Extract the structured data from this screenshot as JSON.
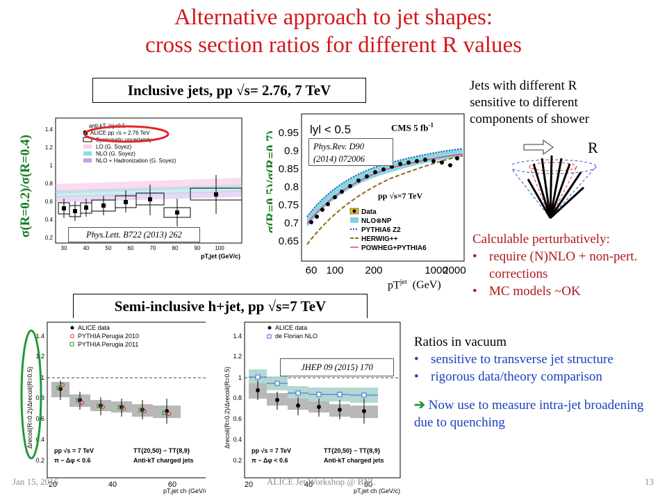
{
  "slide": {
    "title_line1": "Alternative approach to jet shapes:",
    "title_line2": "cross section ratios for different R values",
    "label_inclusive": "Inclusive jets, pp √s= 2.76, 7 TeV",
    "label_semi": "Semi-inclusive h+jet, pp √s=7 TeV",
    "footer_date": "Jan 15, 2016",
    "footer_center": "ALICE Jet Workshop @ BNL",
    "footer_page": "13",
    "title_color": "#d0191c"
  },
  "right_panel": {
    "jets_lines": [
      "Jets with different R",
      "sensitive to different",
      "components of shower"
    ],
    "R_label": "R",
    "calc_heading": "Calculable perturbatively:",
    "calc_bullets": [
      "require (N)NLO + non-pert. corrections",
      "MC models ~OK"
    ],
    "vacuum_heading": "Ratios in vacuum",
    "vacuum_bullets": [
      "sensitive to transverse jet structure",
      "rigorous data/theory comparison"
    ],
    "arrow_text": "Now use to measure intra-jet broadening due to quenching"
  },
  "plot1": {
    "ylabel": "σ(R=0.2)/σ(R=0.4)",
    "reference": "Phys.Lett. B722 (2013) 262",
    "legend_header": "anti-kT, |η|<0.5",
    "legend": [
      "ALICE pp  √s = 2.76 TeV",
      "Systematic uncertainty",
      "LO (G. Soyez)",
      "NLO (G. Soyez)",
      "NLO + Hadronization (G. Soyez)"
    ],
    "y_ticks": [
      "1.4",
      "1.2",
      "1",
      "0.8",
      "0.6",
      "0.4",
      "0.2"
    ],
    "x_ticks": [
      "30",
      "40",
      "50",
      "60",
      "70",
      "80",
      "90",
      "100"
    ],
    "xlabel": "pT,jet (GeV/c)"
  },
  "plot2": {
    "ylabel": "σ(R=0.5)/σ(R=0.7)",
    "eta_label": "lyl < 0.5",
    "cms_label": "CMS 5 fb",
    "cms_sup": "-1",
    "reference_line1": "Phys.Rev. D90",
    "reference_line2": "(2014) 072006",
    "energy_label": "pp √s=7 TeV",
    "legend": [
      "Data",
      "NLO⊗NP",
      "PYTHIA6 Z2",
      "HERWIG++",
      "POWHEG+PYTHIA6"
    ],
    "y_ticks": [
      "0.95",
      "0.9",
      "0.85",
      "0.8",
      "0.75",
      "0.7",
      "0.65"
    ],
    "x_ticks": [
      "60",
      "100",
      "200",
      "1000",
      "2000"
    ],
    "xlabel": "pT",
    "xlabel_sup": "jet",
    "xlabel_unit": "(GeV)"
  },
  "plot3": {
    "ylabel": "Δrecoil(R=0.2)/Δrecoil(R=0.5)",
    "legend": [
      "ALICE data",
      "PYTHIA Perugia 2010",
      "PYTHIA Perugia 2011"
    ],
    "info_lines": [
      "pp √s = 7 TeV",
      "π − Δφ < 0.6"
    ],
    "info_right": [
      "TT{20,50} − TT{8,9}",
      "Anti-kT charged jets"
    ],
    "y_ticks": [
      "1.4",
      "1.2",
      "1",
      "0.8",
      "0.6",
      "0.4",
      "0.2"
    ],
    "x_ticks": [
      "20",
      "40",
      "60"
    ],
    "xlabel": "pT,jet ch (GeV/c)"
  },
  "plot4": {
    "ylabel": "Δrecoil(R=0.2)/Δrecoil(R=0.5)",
    "reference": "JHEP 09 (2015) 170",
    "legend": [
      "ALICE data",
      "de Florian NLO"
    ],
    "info_lines": [
      "pp √s = 7 TeV",
      "π − Δφ < 0.6"
    ],
    "info_right": [
      "TT{20,50} − TT{8,9}",
      "Anti-kT charged jets"
    ],
    "y_ticks": [
      "1.4",
      "1.2",
      "1",
      "0.8",
      "0.6",
      "0.4",
      "0.2"
    ],
    "x_ticks": [
      "20",
      "40",
      "60"
    ],
    "xlabel": "pT,jet ch (GeV/c)"
  }
}
